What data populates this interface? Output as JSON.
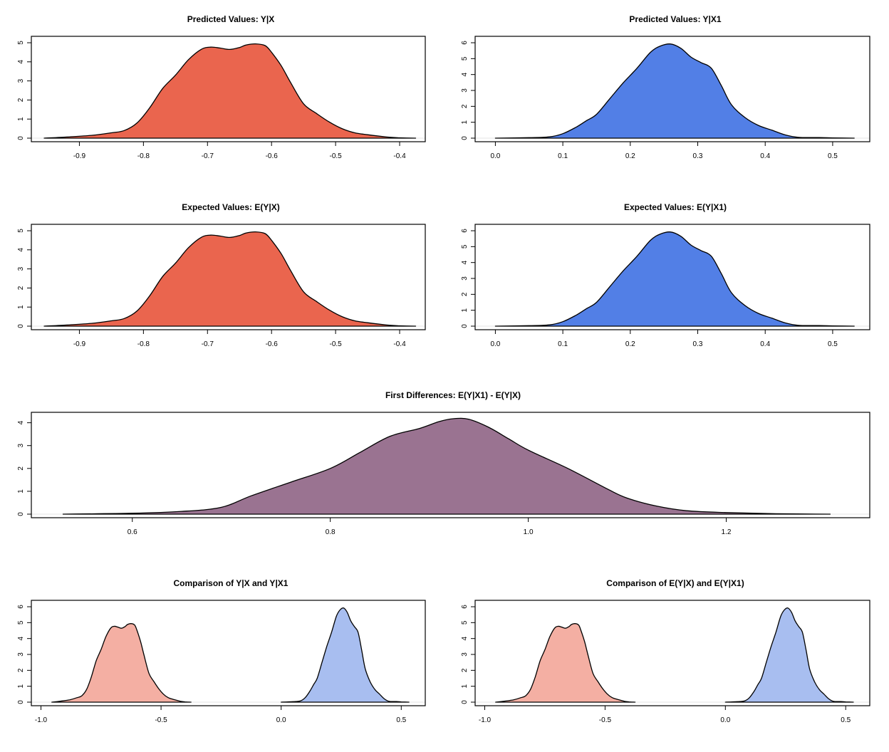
{
  "chart_data": [
    {
      "id": "pv-yx",
      "type": "area",
      "title": "Predicted Values: Y|X",
      "xlabel": "",
      "ylabel": "",
      "xlim": [
        -0.975,
        -0.36
      ],
      "ylim": [
        0,
        5.15
      ],
      "xticks": [
        -0.9,
        -0.8,
        -0.7,
        -0.6,
        -0.5,
        -0.4
      ],
      "xtick_labels": [
        "-0.9",
        "-0.8",
        "-0.7",
        "-0.6",
        "-0.5",
        "-0.4"
      ],
      "yticks": [
        0,
        1,
        2,
        3,
        4,
        5
      ],
      "ytick_labels": [
        "0",
        "1",
        "2",
        "3",
        "4",
        "5"
      ],
      "grid": false,
      "series": [
        {
          "name": "Y|X",
          "color": "#EA654E",
          "x": [
            -0.955,
            -0.92,
            -0.88,
            -0.85,
            -0.83,
            -0.81,
            -0.79,
            -0.77,
            -0.75,
            -0.73,
            -0.71,
            -0.695,
            -0.68,
            -0.665,
            -0.65,
            -0.64,
            -0.625,
            -0.61,
            -0.6,
            -0.585,
            -0.57,
            -0.55,
            -0.53,
            -0.51,
            -0.49,
            -0.47,
            -0.45,
            -0.42,
            -0.4,
            -0.375
          ],
          "y": [
            0.0,
            0.06,
            0.15,
            0.28,
            0.4,
            0.8,
            1.6,
            2.6,
            3.3,
            4.1,
            4.65,
            4.77,
            4.72,
            4.65,
            4.75,
            4.88,
            4.94,
            4.85,
            4.5,
            3.8,
            2.9,
            1.8,
            1.3,
            0.85,
            0.5,
            0.28,
            0.18,
            0.06,
            0.02,
            0.0
          ]
        }
      ]
    },
    {
      "id": "pv-yx1",
      "type": "area",
      "title": "Predicted Values: Y|X1",
      "xlabel": "",
      "ylabel": "",
      "xlim": [
        -0.03,
        0.555
      ],
      "ylim": [
        0,
        6.18
      ],
      "xticks": [
        0.0,
        0.1,
        0.2,
        0.3,
        0.4,
        0.5
      ],
      "xtick_labels": [
        "0.0",
        "0.1",
        "0.2",
        "0.3",
        "0.4",
        "0.5"
      ],
      "yticks": [
        0,
        1,
        2,
        3,
        4,
        5,
        6
      ],
      "ytick_labels": [
        "0",
        "1",
        "2",
        "3",
        "4",
        "5",
        "6"
      ],
      "grid": false,
      "series": [
        {
          "name": "Y|X1",
          "color": "#527FE6",
          "x": [
            0.0,
            0.05,
            0.08,
            0.1,
            0.12,
            0.135,
            0.15,
            0.17,
            0.19,
            0.21,
            0.23,
            0.245,
            0.26,
            0.275,
            0.29,
            0.305,
            0.32,
            0.335,
            0.35,
            0.37,
            0.39,
            0.41,
            0.43,
            0.45,
            0.48,
            0.5,
            0.532
          ],
          "y": [
            0.0,
            0.03,
            0.08,
            0.28,
            0.7,
            1.1,
            1.5,
            2.5,
            3.5,
            4.4,
            5.4,
            5.8,
            5.92,
            5.65,
            5.1,
            4.75,
            4.4,
            3.3,
            2.1,
            1.3,
            0.8,
            0.5,
            0.2,
            0.05,
            0.04,
            0.02,
            0.0
          ]
        }
      ]
    },
    {
      "id": "ev-yx",
      "type": "area",
      "title": "Expected Values: E(Y|X)",
      "xlabel": "",
      "ylabel": "",
      "xlim": [
        -0.975,
        -0.36
      ],
      "ylim": [
        0,
        5.15
      ],
      "xticks": [
        -0.9,
        -0.8,
        -0.7,
        -0.6,
        -0.5,
        -0.4
      ],
      "xtick_labels": [
        "-0.9",
        "-0.8",
        "-0.7",
        "-0.6",
        "-0.5",
        "-0.4"
      ],
      "yticks": [
        0,
        1,
        2,
        3,
        4,
        5
      ],
      "ytick_labels": [
        "0",
        "1",
        "2",
        "3",
        "4",
        "5"
      ],
      "grid": false,
      "series": [
        {
          "name": "E(Y|X)",
          "color": "#EA654E",
          "x": [
            -0.955,
            -0.92,
            -0.88,
            -0.85,
            -0.83,
            -0.81,
            -0.79,
            -0.77,
            -0.75,
            -0.73,
            -0.71,
            -0.695,
            -0.68,
            -0.665,
            -0.65,
            -0.64,
            -0.625,
            -0.61,
            -0.6,
            -0.585,
            -0.57,
            -0.55,
            -0.53,
            -0.51,
            -0.49,
            -0.47,
            -0.45,
            -0.42,
            -0.4,
            -0.375
          ],
          "y": [
            0.0,
            0.06,
            0.15,
            0.28,
            0.4,
            0.8,
            1.6,
            2.6,
            3.3,
            4.1,
            4.65,
            4.77,
            4.72,
            4.65,
            4.75,
            4.88,
            4.94,
            4.85,
            4.5,
            3.8,
            2.9,
            1.8,
            1.3,
            0.85,
            0.5,
            0.28,
            0.18,
            0.06,
            0.02,
            0.0
          ]
        }
      ]
    },
    {
      "id": "ev-yx1",
      "type": "area",
      "title": "Expected Values: E(Y|X1)",
      "xlabel": "",
      "ylabel": "",
      "xlim": [
        -0.03,
        0.555
      ],
      "ylim": [
        0,
        6.18
      ],
      "xticks": [
        0.0,
        0.1,
        0.2,
        0.3,
        0.4,
        0.5
      ],
      "xtick_labels": [
        "0.0",
        "0.1",
        "0.2",
        "0.3",
        "0.4",
        "0.5"
      ],
      "yticks": [
        0,
        1,
        2,
        3,
        4,
        5,
        6
      ],
      "ytick_labels": [
        "0",
        "1",
        "2",
        "3",
        "4",
        "5",
        "6"
      ],
      "grid": false,
      "series": [
        {
          "name": "E(Y|X1)",
          "color": "#527FE6",
          "x": [
            0.0,
            0.05,
            0.08,
            0.1,
            0.12,
            0.135,
            0.15,
            0.17,
            0.19,
            0.21,
            0.23,
            0.245,
            0.26,
            0.275,
            0.29,
            0.305,
            0.32,
            0.335,
            0.35,
            0.37,
            0.39,
            0.41,
            0.43,
            0.45,
            0.48,
            0.5,
            0.532
          ],
          "y": [
            0.0,
            0.03,
            0.08,
            0.28,
            0.7,
            1.1,
            1.5,
            2.5,
            3.5,
            4.4,
            5.4,
            5.8,
            5.92,
            5.65,
            5.1,
            4.75,
            4.4,
            3.3,
            2.1,
            1.3,
            0.8,
            0.5,
            0.2,
            0.05,
            0.04,
            0.02,
            0.0
          ]
        }
      ]
    },
    {
      "id": "fd",
      "type": "area",
      "title": "First Differences: E(Y|X1) - E(Y|X)",
      "xlabel": "",
      "ylabel": "",
      "xlim": [
        0.498,
        1.345
      ],
      "ylim": [
        0,
        4.3
      ],
      "xticks": [
        0.6,
        0.8,
        1.0,
        1.2
      ],
      "xtick_labels": [
        "0.6",
        "0.8",
        "1.0",
        "1.2"
      ],
      "yticks": [
        0,
        1,
        2,
        3,
        4
      ],
      "ytick_labels": [
        "0",
        "1",
        "2",
        "3",
        "4"
      ],
      "grid": false,
      "series": [
        {
          "name": "E(Y|X1) - E(Y|X)",
          "color": "#9A7391",
          "x": [
            0.53,
            0.6,
            0.65,
            0.69,
            0.72,
            0.76,
            0.8,
            0.83,
            0.86,
            0.89,
            0.91,
            0.925,
            0.94,
            0.96,
            0.98,
            1.0,
            1.04,
            1.08,
            1.1,
            1.13,
            1.16,
            1.2,
            1.25,
            1.305
          ],
          "y": [
            0.0,
            0.04,
            0.12,
            0.3,
            0.8,
            1.4,
            2.0,
            2.7,
            3.4,
            3.75,
            4.05,
            4.18,
            4.15,
            3.8,
            3.3,
            2.8,
            2.0,
            1.1,
            0.7,
            0.35,
            0.15,
            0.07,
            0.02,
            0.0
          ]
        }
      ]
    },
    {
      "id": "cmp-pv",
      "type": "area",
      "title": "Comparison of Y|X and Y|X1",
      "xlabel": "",
      "ylabel": "",
      "xlim": [
        -1.04,
        0.6
      ],
      "ylim": [
        0,
        6.18
      ],
      "xticks": [
        -1.0,
        -0.5,
        0.0,
        0.5
      ],
      "xtick_labels": [
        "-1.0",
        "-0.5",
        "0.0",
        "0.5"
      ],
      "yticks": [
        0,
        1,
        2,
        3,
        4,
        5,
        6
      ],
      "ytick_labels": [
        "0",
        "1",
        "2",
        "3",
        "4",
        "5",
        "6"
      ],
      "grid": false,
      "series": [
        {
          "name": "Y|X",
          "color": "#F4AFA3",
          "x": [
            -0.955,
            -0.92,
            -0.88,
            -0.85,
            -0.83,
            -0.81,
            -0.79,
            -0.77,
            -0.75,
            -0.73,
            -0.71,
            -0.695,
            -0.68,
            -0.665,
            -0.65,
            -0.64,
            -0.625,
            -0.61,
            -0.6,
            -0.585,
            -0.57,
            -0.55,
            -0.53,
            -0.51,
            -0.49,
            -0.47,
            -0.45,
            -0.42,
            -0.4,
            -0.375
          ],
          "y": [
            0.0,
            0.06,
            0.15,
            0.28,
            0.4,
            0.8,
            1.6,
            2.6,
            3.3,
            4.1,
            4.65,
            4.77,
            4.72,
            4.65,
            4.75,
            4.88,
            4.94,
            4.85,
            4.5,
            3.8,
            2.9,
            1.8,
            1.3,
            0.85,
            0.5,
            0.28,
            0.18,
            0.06,
            0.02,
            0.0
          ]
        },
        {
          "name": "Y|X1",
          "color": "#A8BEF0",
          "x": [
            0.0,
            0.05,
            0.08,
            0.1,
            0.12,
            0.135,
            0.15,
            0.17,
            0.19,
            0.21,
            0.23,
            0.245,
            0.26,
            0.275,
            0.29,
            0.305,
            0.32,
            0.335,
            0.35,
            0.37,
            0.39,
            0.41,
            0.43,
            0.45,
            0.48,
            0.5,
            0.532
          ],
          "y": [
            0.0,
            0.03,
            0.08,
            0.28,
            0.7,
            1.1,
            1.5,
            2.5,
            3.5,
            4.4,
            5.4,
            5.8,
            5.92,
            5.65,
            5.1,
            4.75,
            4.4,
            3.3,
            2.1,
            1.3,
            0.8,
            0.5,
            0.2,
            0.05,
            0.04,
            0.02,
            0.0
          ]
        }
      ]
    },
    {
      "id": "cmp-ev",
      "type": "area",
      "title": "Comparison of E(Y|X) and E(Y|X1)",
      "xlabel": "",
      "ylabel": "",
      "xlim": [
        -1.04,
        0.6
      ],
      "ylim": [
        0,
        6.18
      ],
      "xticks": [
        -1.0,
        -0.5,
        0.0,
        0.5
      ],
      "xtick_labels": [
        "-1.0",
        "-0.5",
        "0.0",
        "0.5"
      ],
      "yticks": [
        0,
        1,
        2,
        3,
        4,
        5,
        6
      ],
      "ytick_labels": [
        "0",
        "1",
        "2",
        "3",
        "4",
        "5",
        "6"
      ],
      "grid": false,
      "series": [
        {
          "name": "E(Y|X)",
          "color": "#F4AFA3",
          "x": [
            -0.955,
            -0.92,
            -0.88,
            -0.85,
            -0.83,
            -0.81,
            -0.79,
            -0.77,
            -0.75,
            -0.73,
            -0.71,
            -0.695,
            -0.68,
            -0.665,
            -0.65,
            -0.64,
            -0.625,
            -0.61,
            -0.6,
            -0.585,
            -0.57,
            -0.55,
            -0.53,
            -0.51,
            -0.49,
            -0.47,
            -0.45,
            -0.42,
            -0.4,
            -0.375
          ],
          "y": [
            0.0,
            0.06,
            0.15,
            0.28,
            0.4,
            0.8,
            1.6,
            2.6,
            3.3,
            4.1,
            4.65,
            4.77,
            4.72,
            4.65,
            4.75,
            4.88,
            4.94,
            4.85,
            4.5,
            3.8,
            2.9,
            1.8,
            1.3,
            0.85,
            0.5,
            0.28,
            0.18,
            0.06,
            0.02,
            0.0
          ]
        },
        {
          "name": "E(Y|X1)",
          "color": "#A8BEF0",
          "x": [
            0.0,
            0.05,
            0.08,
            0.1,
            0.12,
            0.135,
            0.15,
            0.17,
            0.19,
            0.21,
            0.23,
            0.245,
            0.26,
            0.275,
            0.29,
            0.305,
            0.32,
            0.335,
            0.35,
            0.37,
            0.39,
            0.41,
            0.43,
            0.45,
            0.48,
            0.5,
            0.532
          ],
          "y": [
            0.0,
            0.03,
            0.08,
            0.28,
            0.7,
            1.1,
            1.5,
            2.5,
            3.5,
            4.4,
            5.4,
            5.8,
            5.92,
            5.65,
            5.1,
            4.75,
            4.4,
            3.3,
            2.1,
            1.3,
            0.8,
            0.5,
            0.2,
            0.05,
            0.04,
            0.02,
            0.0
          ]
        }
      ]
    }
  ]
}
